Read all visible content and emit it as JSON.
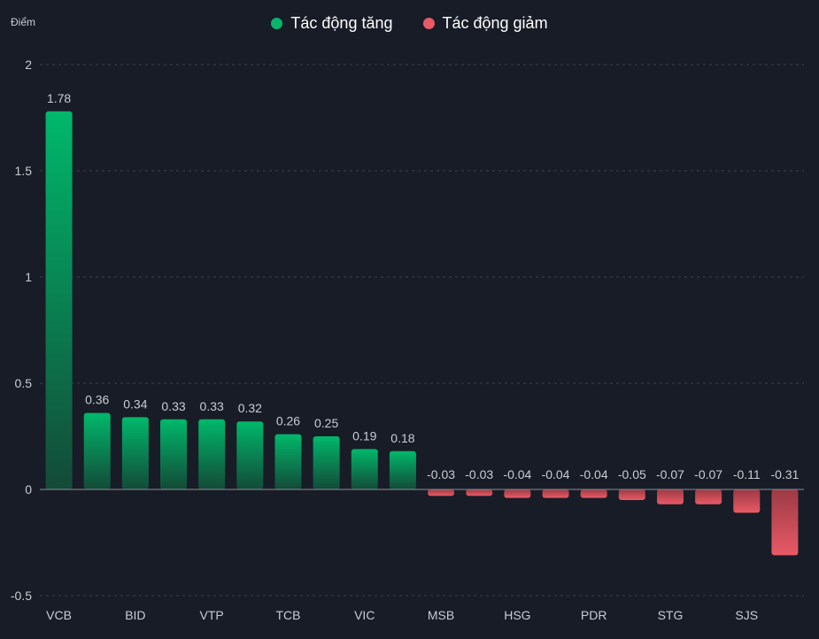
{
  "chart_data": {
    "type": "bar",
    "ylabel": "Điểm",
    "ylim": [
      -0.5,
      2
    ],
    "yticks": [
      "2",
      "1.5",
      "1",
      "0.5",
      "0",
      "-0.5"
    ],
    "ytick_values": [
      2,
      1.5,
      1,
      0.5,
      0,
      -0.5
    ],
    "grid": true,
    "legend": [
      {
        "name": "Tác động tăng",
        "color": "#0bb36b"
      },
      {
        "name": "Tác động giảm",
        "color": "#e85a66"
      }
    ],
    "categories": [
      "VCB",
      "",
      "BID",
      "",
      "VTP",
      "",
      "TCB",
      "",
      "VIC",
      "",
      "MSB",
      "",
      "HSG",
      "",
      "PDR",
      "",
      "STG",
      "",
      "SJS",
      ""
    ],
    "values": [
      1.78,
      0.36,
      0.34,
      0.33,
      0.33,
      0.32,
      0.26,
      0.25,
      0.19,
      0.18,
      -0.03,
      -0.03,
      -0.04,
      -0.04,
      -0.04,
      -0.05,
      -0.07,
      -0.07,
      -0.11,
      -0.31
    ],
    "labels": [
      "1.78",
      "0.36",
      "0.34",
      "0.33",
      "0.33",
      "0.32",
      "0.26",
      "0.25",
      "0.19",
      "0.18",
      "-0.03",
      "-0.03",
      "-0.04",
      "-0.04",
      "-0.04",
      "-0.05",
      "-0.07",
      "-0.07",
      "-0.11",
      "-0.31"
    ],
    "colors": {
      "positive_top": "#00b86b",
      "positive_bottom": "#134a38",
      "negative_top": "#9c3a44",
      "negative_bottom": "#e85a66",
      "grid": "#3a3f4c",
      "baseline": "#8c909a",
      "text": "#c9ccd3",
      "label": "#c9ccd3"
    }
  }
}
